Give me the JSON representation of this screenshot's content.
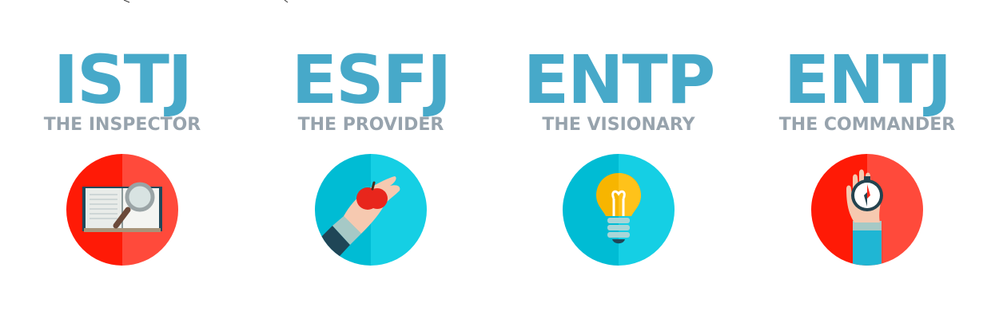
{
  "types": [
    {
      "code": "ISTJ",
      "title": "THE INSPECTOR",
      "icon": "book-magnifier-icon",
      "circle_left": "#ff1a06",
      "circle_right": "#ff4a3b"
    },
    {
      "code": "ESFJ",
      "title": "THE PROVIDER",
      "icon": "hand-apple-icon",
      "circle_left": "#00bcd4",
      "circle_right": "#15cfe4"
    },
    {
      "code": "ENTP",
      "title": "THE VISIONARY",
      "icon": "light-bulb-icon",
      "circle_left": "#00bcd4",
      "circle_right": "#15cfe4"
    },
    {
      "code": "ENTJ",
      "title": "THE COMMANDER",
      "icon": "hand-compass-icon",
      "circle_left": "#ff1a06",
      "circle_right": "#ff4a3b"
    }
  ],
  "colors": {
    "code_text": "#47a9c9",
    "title_text": "#97a3ad"
  }
}
